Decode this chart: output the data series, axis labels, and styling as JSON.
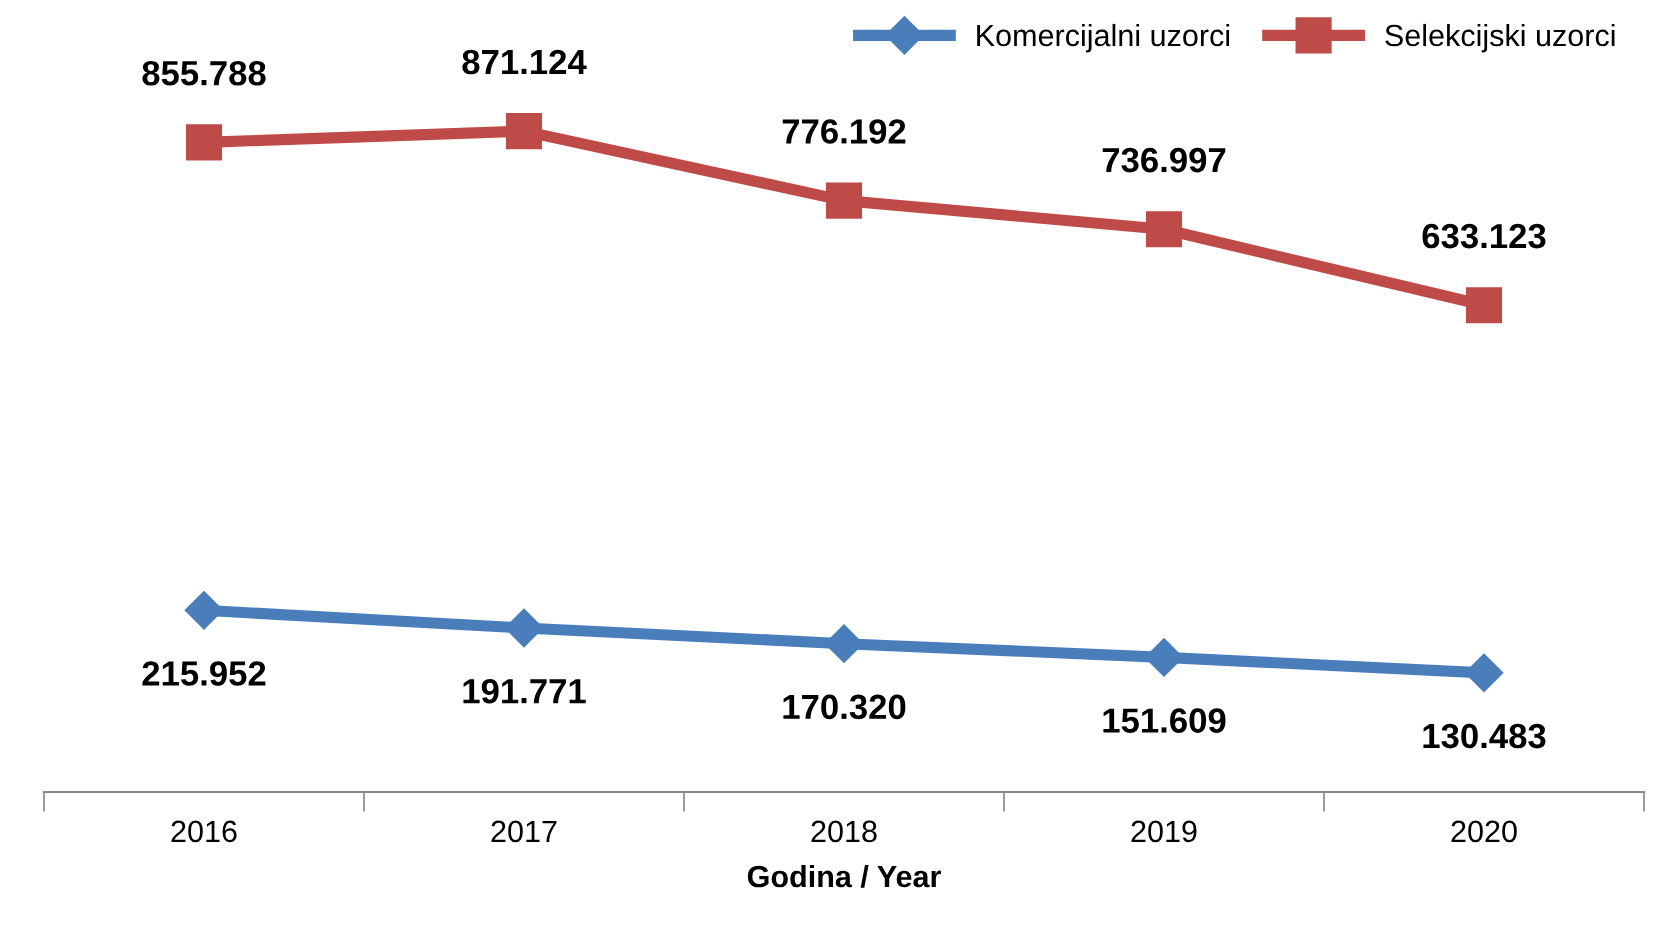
{
  "chart_data": {
    "type": "line",
    "xlabel": "Godina / Year",
    "categories": [
      "2016",
      "2017",
      "2018",
      "2019",
      "2020"
    ],
    "series": [
      {
        "name": "Komercijalni uzorci",
        "color": "#4a7ebb",
        "marker": "diamond",
        "values": [
          215.952,
          191.771,
          170.32,
          151.609,
          130.483
        ],
        "value_labels": [
          "215.952",
          "191.771",
          "170.320",
          "151.609",
          "130.483"
        ]
      },
      {
        "name": "Selekcijski uzorci",
        "color": "#be4b48",
        "marker": "square",
        "values": [
          855.788,
          871.124,
          776.192,
          736.997,
          633.123
        ],
        "value_labels": [
          "855.788",
          "871.124",
          "776.192",
          "736.997",
          "633.123"
        ]
      }
    ],
    "legend": "top right",
    "grid": false,
    "line_style": "solid"
  }
}
